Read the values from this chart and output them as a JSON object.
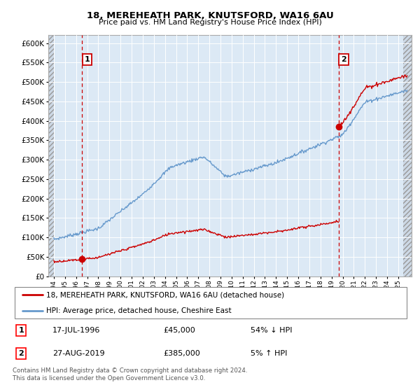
{
  "title1": "18, MEREHEATH PARK, KNUTSFORD, WA16 6AU",
  "title2": "Price paid vs. HM Land Registry's House Price Index (HPI)",
  "legend_line1": "18, MEREHEATH PARK, KNUTSFORD, WA16 6AU (detached house)",
  "legend_line2": "HPI: Average price, detached house, Cheshire East",
  "annotation1_date": "17-JUL-1996",
  "annotation1_price": "£45,000",
  "annotation1_hpi": "54% ↓ HPI",
  "annotation2_date": "27-AUG-2019",
  "annotation2_price": "£385,000",
  "annotation2_hpi": "5% ↑ HPI",
  "footnote": "Contains HM Land Registry data © Crown copyright and database right 2024.\nThis data is licensed under the Open Government Licence v3.0.",
  "sale1_year": 1996.54,
  "sale1_price": 45000,
  "sale2_year": 2019.65,
  "sale2_price": 385000,
  "hpi_color": "#6699cc",
  "sale_color": "#cc0000",
  "bg_plot": "#dce9f5",
  "ylim_min": 0,
  "ylim_max": 620000,
  "xlim_min": 1993.5,
  "xlim_max": 2026.2,
  "hatch_left_end": 1994.0,
  "hatch_right_start": 2025.42
}
